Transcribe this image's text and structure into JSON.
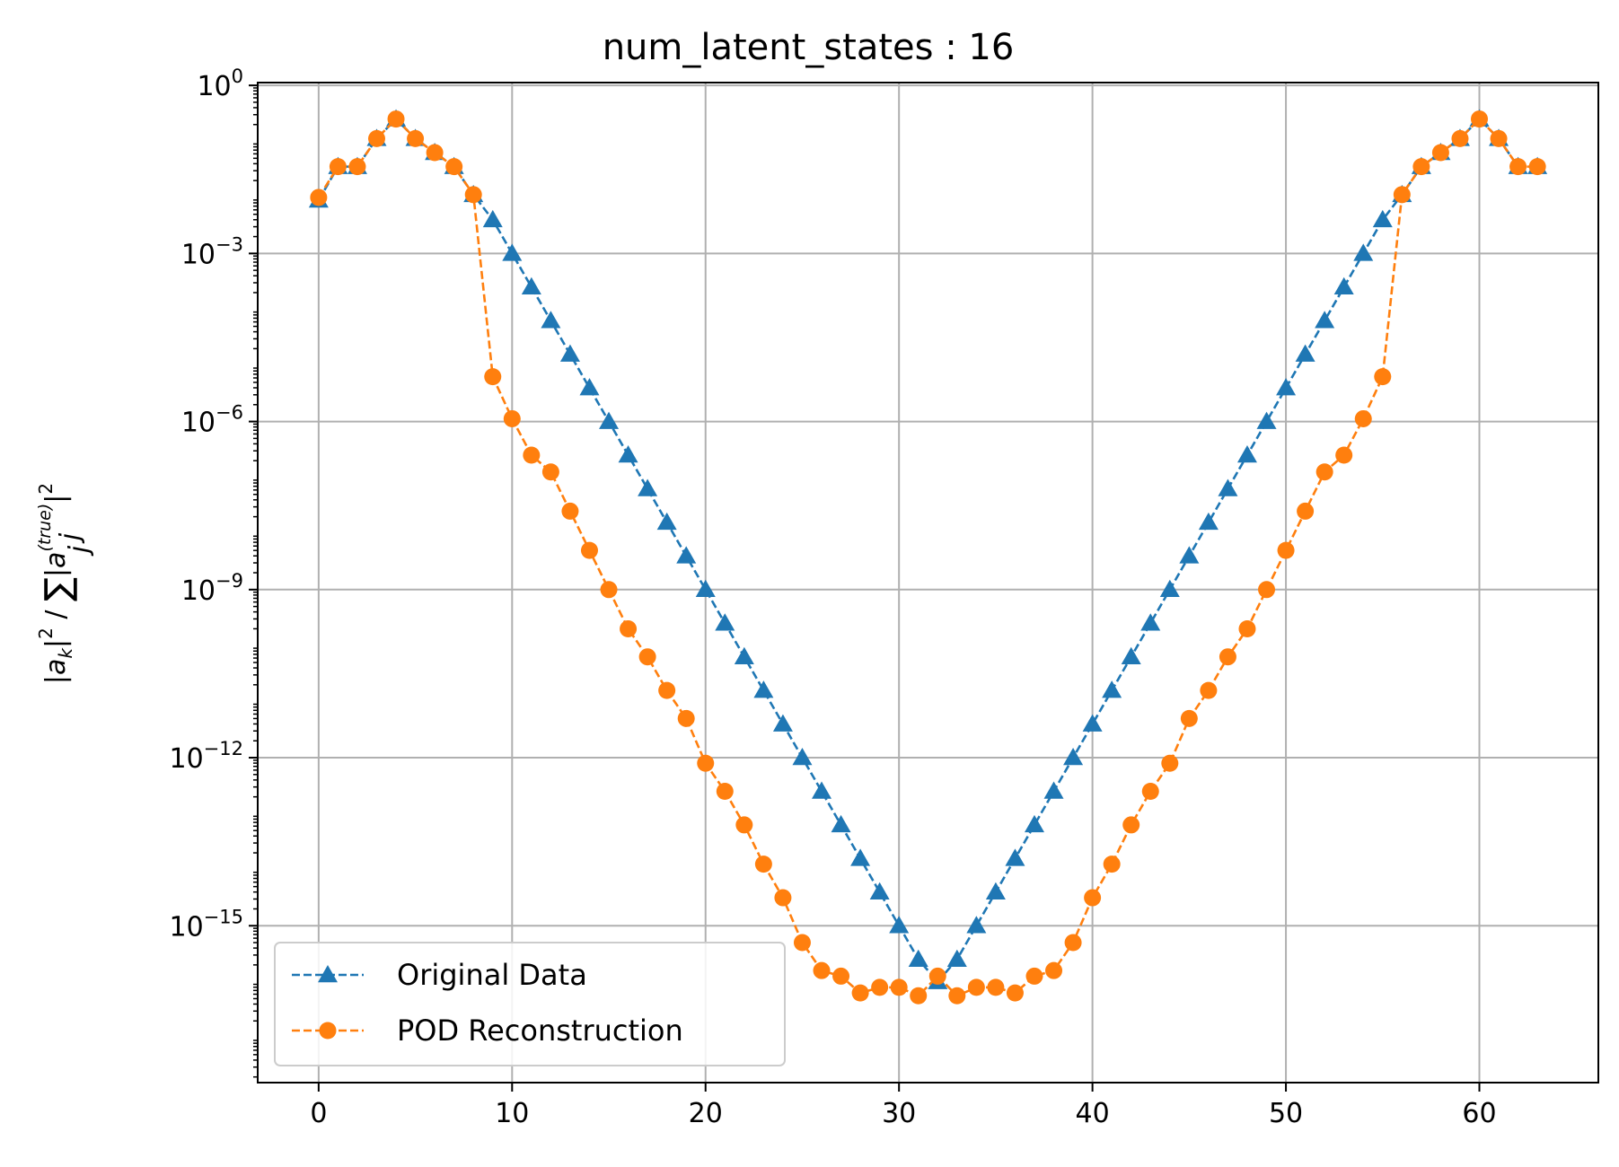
{
  "chart_data": {
    "type": "line",
    "title": "num_latent_states : 16",
    "ylabel": "|a_k|^2 / Σ_j|a_j^(true)|^2",
    "xlabel": "",
    "yscale": "log",
    "xlim": [
      -3.15,
      66.15
    ],
    "ylim_exp": [
      -17.8,
      0.05
    ],
    "grid": true,
    "legend_position": "lower-left",
    "x_ticks": [
      "0",
      "10",
      "20",
      "30",
      "40",
      "50",
      "60"
    ],
    "y_ticks": [
      {
        "base": "10",
        "exp": "0"
      },
      {
        "base": "10",
        "exp": "−3"
      },
      {
        "base": "10",
        "exp": "−6"
      },
      {
        "base": "10",
        "exp": "−9"
      },
      {
        "base": "10",
        "exp": "−12"
      },
      {
        "base": "10",
        "exp": "−15"
      }
    ],
    "series": [
      {
        "name": "Original Data",
        "color": "#1f77b4",
        "marker": "triangle",
        "log10_values": [
          -2.05,
          -1.45,
          -1.45,
          -0.95,
          -0.6,
          -0.95,
          -1.2,
          -1.45,
          -1.95,
          -2.4,
          -3.0,
          -3.6,
          -4.2,
          -4.8,
          -5.4,
          -6.0,
          -6.6,
          -7.2,
          -7.8,
          -8.4,
          -9.0,
          -9.6,
          -10.2,
          -10.8,
          -11.4,
          -12.0,
          -12.6,
          -13.2,
          -13.8,
          -14.4,
          -15.0,
          -15.6,
          -16.0,
          -15.6,
          -15.0,
          -14.4,
          -13.8,
          -13.2,
          -12.6,
          -12.0,
          -11.4,
          -10.8,
          -10.2,
          -9.6,
          -9.0,
          -8.4,
          -7.8,
          -7.2,
          -6.6,
          -6.0,
          -5.4,
          -4.8,
          -4.2,
          -3.6,
          -3.0,
          -2.4,
          -1.95,
          -1.45,
          -1.2,
          -0.95,
          -0.6,
          -0.95,
          -1.45,
          -1.45
        ]
      },
      {
        "name": "POD Reconstruction",
        "color": "#ff7f0e",
        "marker": "circle",
        "log10_values": [
          -2.0,
          -1.45,
          -1.45,
          -0.95,
          -0.6,
          -0.95,
          -1.2,
          -1.45,
          -1.95,
          -5.2,
          -5.95,
          -6.6,
          -6.9,
          -7.6,
          -8.3,
          -9.0,
          -9.7,
          -10.2,
          -10.8,
          -11.3,
          -12.1,
          -12.6,
          -13.2,
          -13.9,
          -14.5,
          -15.3,
          -15.8,
          -15.9,
          -16.2,
          -16.1,
          -16.1,
          -16.25,
          -15.9,
          -16.25,
          -16.1,
          -16.1,
          -16.2,
          -15.9,
          -15.8,
          -15.3,
          -14.5,
          -13.9,
          -13.2,
          -12.6,
          -12.1,
          -11.3,
          -10.8,
          -10.2,
          -9.7,
          -9.0,
          -8.3,
          -7.6,
          -6.9,
          -6.6,
          -5.95,
          -5.2,
          -1.95,
          -1.45,
          -1.2,
          -0.95,
          -0.6,
          -0.95,
          -1.45,
          -1.45
        ]
      }
    ]
  }
}
